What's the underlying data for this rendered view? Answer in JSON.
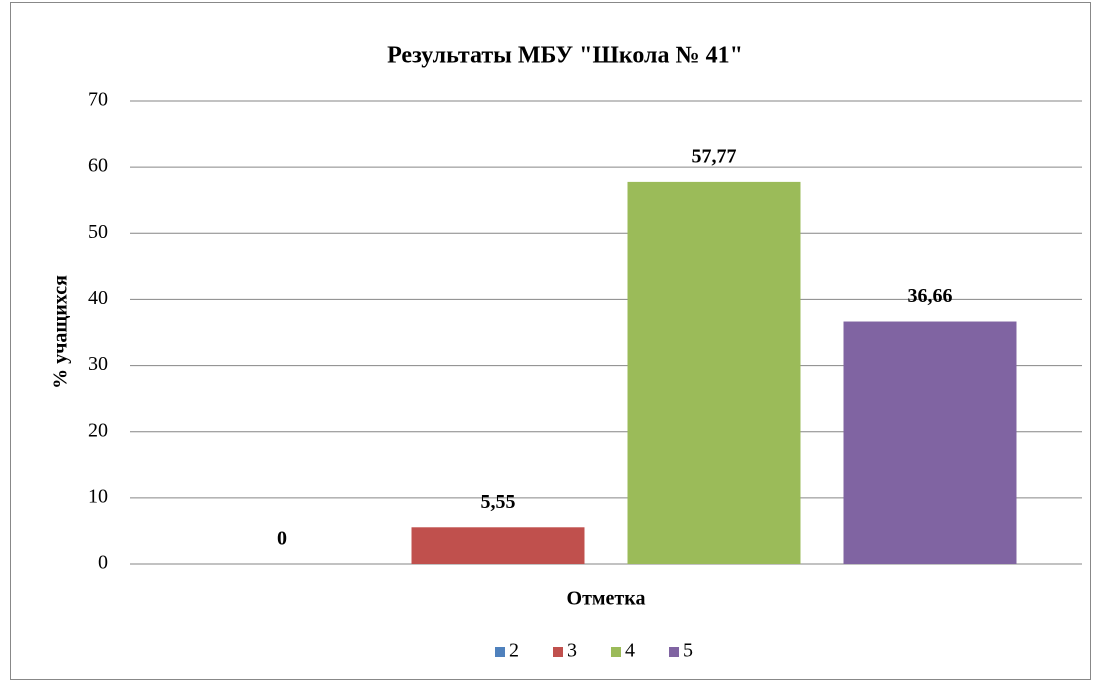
{
  "chart_data": {
    "type": "bar",
    "title": "Результаты МБУ \"Школа № 41\"",
    "xlabel": "Отметка",
    "ylabel": "% учащихся",
    "series": [
      {
        "name": "2",
        "color": "#4f81bd",
        "values": [
          0
        ],
        "value_labels": [
          "0"
        ]
      },
      {
        "name": "3",
        "color": "#c0504d",
        "values": [
          5.55
        ],
        "value_labels": [
          "5,55"
        ]
      },
      {
        "name": "4",
        "color": "#9bbb59",
        "values": [
          57.77
        ],
        "value_labels": [
          "57,77"
        ]
      },
      {
        "name": "5",
        "color": "#8064a2",
        "values": [
          36.66
        ],
        "value_labels": [
          "36,66"
        ]
      }
    ],
    "ylim": [
      0,
      70
    ],
    "yticks": [
      0,
      10,
      20,
      30,
      40,
      50,
      60,
      70
    ],
    "grid": true,
    "legend": "bottom"
  }
}
